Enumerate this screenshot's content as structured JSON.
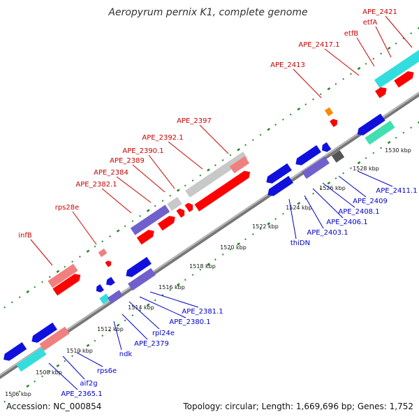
{
  "title": "Aeropyrum pernix K1, complete genome",
  "footer": {
    "accession": "Accession: NC_000854",
    "summary": "Topology: circular; Length: 1,669,696 bp; Genes: 1,752"
  },
  "ticks": [
    "1506 kbp",
    "1508 kbp",
    "1510 kbp",
    "1512 kbp",
    "1514 kbp",
    "1516 kbp",
    "1518 kbp",
    "1520 kbp",
    "1522 kbp",
    "1524 kbp",
    "1526 kbp",
    "1528 kbp",
    "1530 kbp"
  ],
  "labels_top": [
    "infB",
    "rps28e",
    "APE_2382.1",
    "APE_2384",
    "APE_2389",
    "APE_2390.1",
    "APE_2392.1",
    "APE_2397",
    "APE_2413",
    "APE_2417.1",
    "etfB",
    "etfA",
    "APE_2421"
  ],
  "labels_bottom": [
    "APE_2365.1",
    "aif2g",
    "rps6e",
    "ndk",
    "APE_2379",
    "rpl24e",
    "APE_2380.1",
    "APE_2381.1",
    "thiDN",
    "APE_2403.1",
    "APE_2406.1",
    "APE_2408.1",
    "APE_2409",
    "APE_2411.1"
  ],
  "colors": {
    "backbone": "#999999",
    "red": "#ff0000",
    "pink": "#f08080",
    "blue": "#1010dd",
    "purple": "#7060cc",
    "cyan": "#33dddd",
    "teal": "#40e0b0",
    "orange": "#ff8800",
    "grey": "#c8c8c8",
    "label_red": "#cc0000",
    "label_blue": "#0000cc",
    "dots": "#228822"
  }
}
